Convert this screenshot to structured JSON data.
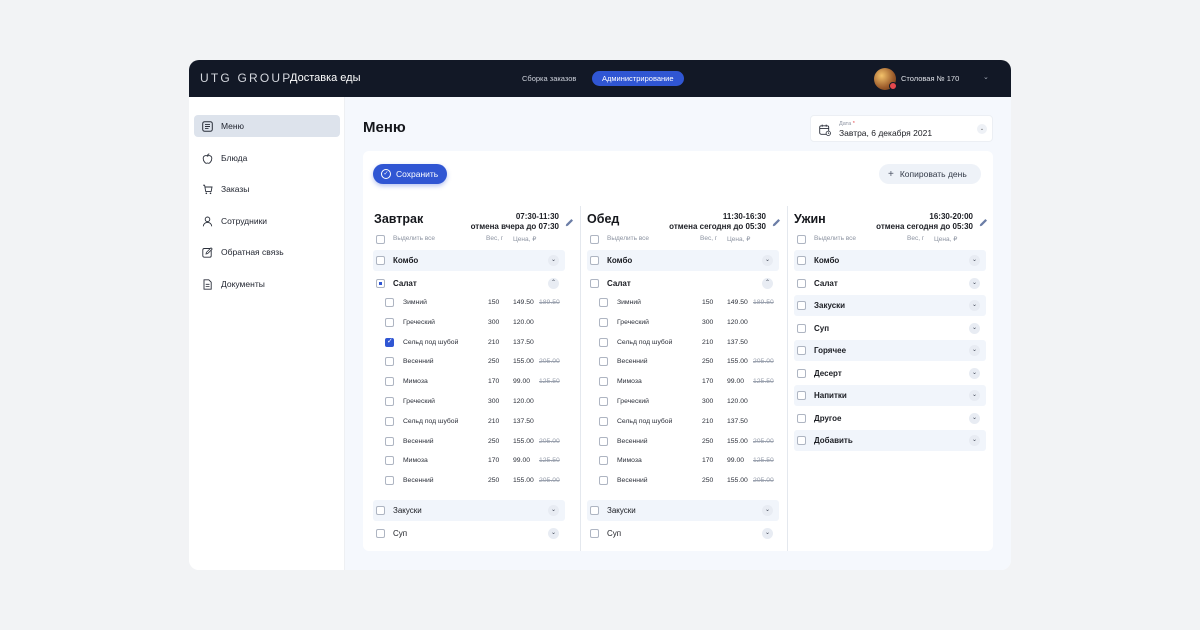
{
  "topbar": {
    "brand": "UTG GROUP",
    "product": "Доставка еды",
    "nav": [
      {
        "label": "Сборка заказов"
      },
      {
        "label": "Администрирование"
      }
    ],
    "canteen": "Столовая № 170",
    "icons": {
      "avatar": "avatar-photo",
      "notification": "notification-dot",
      "dropdown": "chevron-down-icon"
    }
  },
  "sidebar": {
    "items": [
      {
        "label": "Меню",
        "icon": "menu-list-icon",
        "active": true
      },
      {
        "label": "Блюда",
        "icon": "apple-icon"
      },
      {
        "label": "Заказы",
        "icon": "cart-icon"
      },
      {
        "label": "Сотрудники",
        "icon": "user-icon"
      },
      {
        "label": "Обратная связь",
        "icon": "edit-icon"
      },
      {
        "label": "Документы",
        "icon": "document-icon"
      }
    ]
  },
  "page": {
    "title": "Меню",
    "date_caption": "Дата",
    "date_required": "*",
    "date_value": "Завтра, 6 декабря 2021",
    "save": "Сохранить",
    "copy": "Копировать день",
    "accent": "#3056d3"
  },
  "meals": [
    {
      "title": "Завтрак",
      "time": "07:30-11:30",
      "cancel": "отмена вчера до 07:30",
      "select_all": "Выделить все",
      "weight_header": "Вес, г",
      "price_header": "Цена, ₽",
      "categories_top": [
        {
          "label": "Комбо",
          "bold": true,
          "chevron": "⌄",
          "state": "none",
          "shaded": true
        },
        {
          "label": "Салат",
          "bold": true,
          "chevron": "⌃",
          "state": "partial",
          "shaded": false
        }
      ],
      "items": [
        {
          "name": "Зимний",
          "weight": "150",
          "price": "149.50",
          "old_price": "189.50",
          "checked": false
        },
        {
          "name": "Греческий",
          "weight": "300",
          "price": "120.00",
          "old_price": "",
          "checked": false
        },
        {
          "name": "Сельд под шубой",
          "weight": "210",
          "price": "137.50",
          "old_price": "",
          "checked": true
        },
        {
          "name": "Весенний",
          "weight": "250",
          "price": "155.00",
          "old_price": "205.00",
          "checked": false
        },
        {
          "name": "Мимоза",
          "weight": "170",
          "price": "99.00",
          "old_price": "125.50",
          "checked": false
        },
        {
          "name": "Греческий",
          "weight": "300",
          "price": "120.00",
          "old_price": "",
          "checked": false
        },
        {
          "name": "Сельд под шубой",
          "weight": "210",
          "price": "137.50",
          "old_price": "",
          "checked": false
        },
        {
          "name": "Весенний",
          "weight": "250",
          "price": "155.00",
          "old_price": "205.00",
          "checked": false
        },
        {
          "name": "Мимоза",
          "weight": "170",
          "price": "99.00",
          "old_price": "125.50",
          "checked": false
        },
        {
          "name": "Весенний",
          "weight": "250",
          "price": "155.00",
          "old_price": "205.00",
          "checked": false
        }
      ],
      "categories_bottom": [
        {
          "label": "Закуски",
          "bold": false,
          "chevron": "⌄",
          "state": "none",
          "shaded": true
        },
        {
          "label": "Суп",
          "bold": false,
          "chevron": "⌄",
          "state": "none",
          "shaded": false
        }
      ]
    },
    {
      "title": "Обед",
      "time": "11:30-16:30",
      "cancel": "отмена сегодня до 05:30",
      "select_all": "Выделить все",
      "weight_header": "Вес, г",
      "price_header": "Цена, ₽",
      "categories_top": [
        {
          "label": "Комбо",
          "bold": true,
          "chevron": "⌄",
          "state": "none",
          "shaded": true
        },
        {
          "label": "Салат",
          "bold": true,
          "chevron": "⌃",
          "state": "none",
          "shaded": false
        }
      ],
      "items": [
        {
          "name": "Зимний",
          "weight": "150",
          "price": "149.50",
          "old_price": "189.50",
          "checked": false
        },
        {
          "name": "Греческий",
          "weight": "300",
          "price": "120.00",
          "old_price": "",
          "checked": false
        },
        {
          "name": "Сельд под шубой",
          "weight": "210",
          "price": "137.50",
          "old_price": "",
          "checked": false
        },
        {
          "name": "Весенний",
          "weight": "250",
          "price": "155.00",
          "old_price": "205.00",
          "checked": false
        },
        {
          "name": "Мимоза",
          "weight": "170",
          "price": "99.00",
          "old_price": "125.50",
          "checked": false
        },
        {
          "name": "Греческий",
          "weight": "300",
          "price": "120.00",
          "old_price": "",
          "checked": false
        },
        {
          "name": "Сельд под шубой",
          "weight": "210",
          "price": "137.50",
          "old_price": "",
          "checked": false
        },
        {
          "name": "Весенний",
          "weight": "250",
          "price": "155.00",
          "old_price": "205.00",
          "checked": false
        },
        {
          "name": "Мимоза",
          "weight": "170",
          "price": "99.00",
          "old_price": "125.50",
          "checked": false
        },
        {
          "name": "Весенний",
          "weight": "250",
          "price": "155.00",
          "old_price": "205.00",
          "checked": false
        }
      ],
      "categories_bottom": [
        {
          "label": "Закуски",
          "bold": false,
          "chevron": "⌄",
          "state": "none",
          "shaded": true
        },
        {
          "label": "Суп",
          "bold": false,
          "chevron": "⌄",
          "state": "none",
          "shaded": false
        }
      ]
    },
    {
      "title": "Ужин",
      "time": "16:30-20:00",
      "cancel": "отмена сегодня до 05:30",
      "select_all": "Выделить все",
      "weight_header": "Вес, г",
      "price_header": "Цена, ₽",
      "categories_top": [
        {
          "label": "Комбо",
          "bold": true,
          "chevron": "⌄",
          "state": "none",
          "shaded": true
        },
        {
          "label": "Салат",
          "bold": true,
          "chevron": "⌄",
          "state": "none",
          "shaded": false
        },
        {
          "label": "Закуски",
          "bold": true,
          "chevron": "⌄",
          "state": "none",
          "shaded": true
        },
        {
          "label": "Суп",
          "bold": true,
          "chevron": "⌄",
          "state": "none",
          "shaded": false
        },
        {
          "label": "Горячее",
          "bold": true,
          "chevron": "⌄",
          "state": "none",
          "shaded": true
        },
        {
          "label": "Десерт",
          "bold": true,
          "chevron": "⌄",
          "state": "none",
          "shaded": false
        },
        {
          "label": "Напитки",
          "bold": true,
          "chevron": "⌄",
          "state": "none",
          "shaded": true
        },
        {
          "label": "Другое",
          "bold": true,
          "chevron": "⌄",
          "state": "none",
          "shaded": false
        },
        {
          "label": "Добавить",
          "bold": true,
          "chevron": "⌄",
          "state": "none",
          "shaded": true
        }
      ],
      "items": [],
      "categories_bottom": []
    }
  ]
}
